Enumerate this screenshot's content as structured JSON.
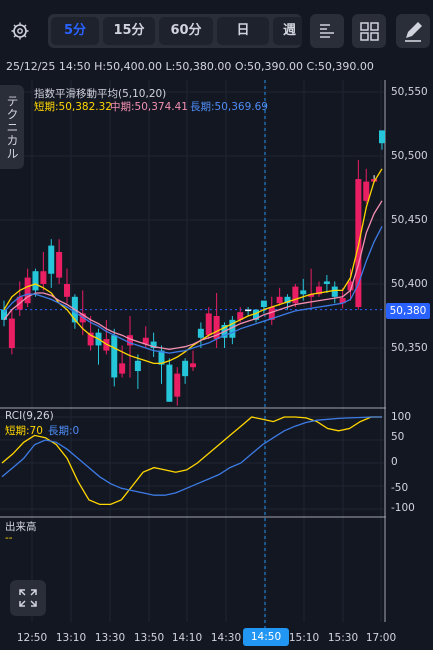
{
  "toolbar": {
    "settings_icon": "gear-icon",
    "intervals": [
      {
        "label": "5分",
        "active": true
      },
      {
        "label": "15分",
        "active": false
      },
      {
        "label": "60分",
        "active": false
      },
      {
        "label": "日",
        "active": false
      },
      {
        "label": "週",
        "active": false
      }
    ],
    "indicator_icon": "bars-icon",
    "layout_icon": "grid-icon",
    "draw_icon": "pencil-icon"
  },
  "ohlc_line": "25/12/25 14:50  H:50,400.00  L:50,380.00  O:50,390.00  C:50,390.00",
  "main_legend": {
    "title": "指数平滑移動平均(5,10,20)",
    "short": "短期:50,382.32",
    "mid": "中期:50,374.41",
    "long": "長期:50,369.69"
  },
  "technical_tab": "テクニカル",
  "rci_legend": {
    "title": "RCI(9,26)",
    "short": "短期:70",
    "long": "長期:0"
  },
  "volume_legend": {
    "title": "出来高",
    "value": "--"
  },
  "price_tag": "50,380",
  "time_cursor_label": "14:50",
  "colors": {
    "background": "#131722",
    "up": "#26c6da",
    "down": "#e91e63",
    "ema_short": "#ffd600",
    "ema_mid": "#f48fb1",
    "ema_long": "#3d7be5",
    "accent": "#2962ff"
  },
  "chart_data": [
    {
      "type": "candlestick",
      "title": "",
      "y_ticks": [
        "50,550",
        "50,500",
        "50,450",
        "50,400",
        "50,350"
      ],
      "x_ticks": [
        "12:50",
        "13:10",
        "13:30",
        "13:50",
        "14:10",
        "14:30",
        "14:50",
        "15:10",
        "15:30",
        "17:00"
      ],
      "x_cursor": "14:50",
      "candles": [
        [
          50372,
          50387,
          50367,
          50380
        ],
        [
          50373,
          50380,
          50345,
          50350
        ],
        [
          50390,
          50402,
          50375,
          50380
        ],
        [
          50405,
          50412,
          50382,
          50385
        ],
        [
          50395,
          50412,
          50390,
          50410
        ],
        [
          50410,
          50425,
          50395,
          50400
        ],
        [
          50408,
          50435,
          50397,
          50430
        ],
        [
          50425,
          50435,
          50400,
          50405
        ],
        [
          50400,
          50412,
          50385,
          50390
        ],
        [
          50370,
          50392,
          50365,
          50390
        ],
        [
          50377,
          50395,
          50360,
          50370
        ],
        [
          50362,
          50375,
          50348,
          50352
        ],
        [
          50352,
          50365,
          50337,
          50362
        ],
        [
          50357,
          50372,
          50345,
          50348
        ],
        [
          50327,
          50365,
          50320,
          50360
        ],
        [
          50338,
          50352,
          50327,
          50330
        ],
        [
          50360,
          50375,
          50327,
          50352
        ],
        [
          50332,
          50345,
          50318,
          50340
        ],
        [
          50358,
          50367,
          50350,
          50353
        ],
        [
          50350,
          50362,
          50343,
          50355
        ],
        [
          50337,
          50352,
          50322,
          50348
        ],
        [
          50308,
          50342,
          50308,
          50337
        ],
        [
          50330,
          50335,
          50305,
          50312
        ],
        [
          50328,
          50342,
          50322,
          50340
        ],
        [
          50338,
          50348,
          50332,
          50335
        ],
        [
          50358,
          50370,
          50350,
          50365
        ],
        [
          50377,
          50382,
          50357,
          50360
        ],
        [
          50375,
          50393,
          50350,
          50357
        ],
        [
          50358,
          50370,
          50350,
          50368
        ],
        [
          50358,
          50375,
          50353,
          50372
        ],
        [
          50378,
          50382,
          50370,
          50372
        ],
        [
          50380,
          50382,
          50375,
          50380
        ],
        [
          50372,
          50380,
          50370,
          50380
        ],
        [
          50382,
          50387,
          50377,
          50387
        ],
        [
          50382,
          50390,
          50368,
          50372
        ],
        [
          50390,
          50397,
          50383,
          50385
        ],
        [
          50385,
          50392,
          50380,
          50390
        ],
        [
          50398,
          50400,
          50382,
          50385
        ],
        [
          50392,
          50404,
          50387,
          50395
        ],
        [
          50392,
          50412,
          50382,
          50390
        ],
        [
          50398,
          50402,
          50390,
          50392
        ],
        [
          50400,
          50407,
          50393,
          50402
        ],
        [
          50390,
          50402,
          50385,
          50398
        ],
        [
          50389,
          50397,
          50381,
          50385
        ],
        [
          50402,
          50412,
          50387,
          50395
        ],
        [
          50482,
          50497,
          50380,
          50382
        ],
        [
          50480,
          50490,
          50463,
          50465
        ],
        [
          50482,
          50485,
          50480,
          50480
        ],
        [
          50510,
          50520,
          50505,
          50520
        ]
      ],
      "series": [
        {
          "name": "短期",
          "values": [
            50380,
            50390,
            50395,
            50398,
            50400,
            50397,
            50393,
            50385,
            50380,
            50372,
            50365,
            50360,
            50357,
            50353,
            50350,
            50347,
            50344,
            50342,
            50340,
            50338,
            50338,
            50340,
            50343,
            50347,
            50352,
            50356,
            50360,
            50363,
            50366,
            50369,
            50372,
            50375,
            50377,
            50380,
            50382,
            50384,
            50386,
            50388,
            50390,
            50392,
            50393,
            50394,
            50395,
            50395,
            50405,
            50430,
            50460,
            50480,
            50490
          ]
        },
        {
          "name": "中期",
          "values": [
            50372,
            50380,
            50385,
            50390,
            50393,
            50393,
            50391,
            50387,
            50384,
            50380,
            50376,
            50372,
            50369,
            50365,
            50362,
            50360,
            50357,
            50355,
            50353,
            50351,
            50350,
            50349,
            50350,
            50351,
            50353,
            50356,
            50358,
            50360,
            50363,
            50366,
            50369,
            50371,
            50373,
            50376,
            50378,
            50380,
            50382,
            50384,
            50385,
            50386,
            50387,
            50388,
            50389,
            50390,
            50395,
            50415,
            50440,
            50455,
            50465
          ]
        },
        {
          "name": "長期",
          "values": [
            50378,
            50385,
            50390,
            50392,
            50392,
            50390,
            50388,
            50385,
            50382,
            50378,
            50374,
            50370,
            50367,
            50363,
            50360,
            50357,
            50354,
            50352,
            50350,
            50348,
            50347,
            50346,
            50347,
            50348,
            50350,
            50352,
            50354,
            50357,
            50360,
            50362,
            50365,
            50367,
            50369,
            50371,
            50373,
            50375,
            50377,
            50379,
            50380,
            50381,
            50382,
            50383,
            50384,
            50385,
            50388,
            50400,
            50418,
            50433,
            50445
          ]
        }
      ]
    },
    {
      "type": "line",
      "title": "RCI(9,26)",
      "y_ticks": [
        "100",
        "50",
        "0",
        "-50",
        "-100"
      ],
      "ylim": [
        -110,
        110
      ],
      "series": [
        {
          "name": "短期",
          "values": [
            0,
            20,
            45,
            60,
            55,
            40,
            10,
            -40,
            -80,
            -90,
            -90,
            -80,
            -50,
            -20,
            -10,
            -15,
            -20,
            -15,
            0,
            20,
            40,
            60,
            80,
            100,
            95,
            90,
            100,
            100,
            98,
            90,
            75,
            70,
            75,
            90,
            100,
            100
          ]
        },
        {
          "name": "長期",
          "values": [
            -30,
            -10,
            10,
            40,
            50,
            45,
            30,
            10,
            -10,
            -30,
            -45,
            -55,
            -60,
            -65,
            -70,
            -70,
            -65,
            -55,
            -45,
            -35,
            -25,
            -10,
            0,
            20,
            40,
            55,
            70,
            80,
            88,
            93,
            95,
            97,
            98,
            99,
            100,
            100
          ]
        }
      ]
    },
    {
      "type": "bar",
      "title": "出来高",
      "values": []
    }
  ]
}
